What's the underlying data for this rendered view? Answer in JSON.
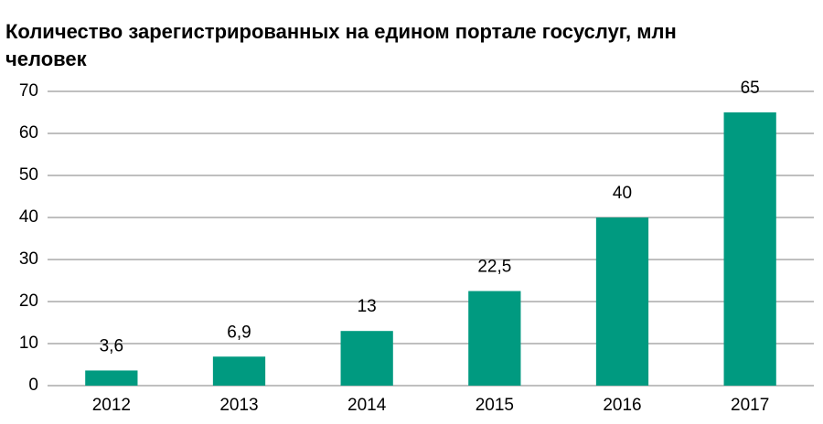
{
  "chart_data": {
    "type": "bar",
    "title": "Количество зарегистрированных на едином портале госуслуг, млн человек",
    "categories": [
      "2012",
      "2013",
      "2014",
      "2015",
      "2016",
      "2017"
    ],
    "values": [
      3.6,
      6.9,
      13,
      22.5,
      40,
      65
    ],
    "value_labels": [
      "3,6",
      "6,9",
      "13",
      "22,5",
      "40",
      "65"
    ],
    "color": "#009a80",
    "ylim": [
      0,
      70
    ],
    "yticks": [
      0,
      10,
      20,
      30,
      40,
      50,
      60,
      70
    ],
    "grid": true
  }
}
